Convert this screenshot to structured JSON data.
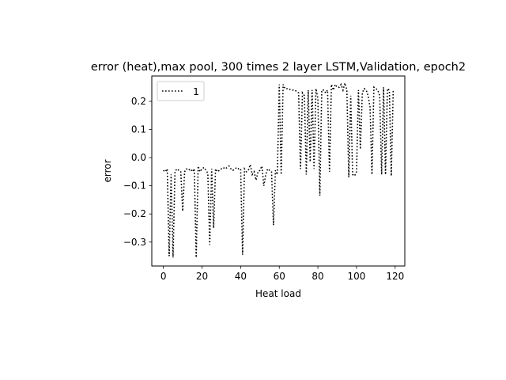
{
  "chart_data": {
    "type": "line",
    "title": "error (heat),max pool, 300 times 2 layer LSTM,Validation, epoch2",
    "xlabel": "Heat load",
    "ylabel": "error",
    "xlim": [
      -6,
      125
    ],
    "ylim": [
      -0.385,
      0.29
    ],
    "xticks": [
      0,
      20,
      40,
      60,
      80,
      100,
      120
    ],
    "yticks": [
      -0.3,
      -0.2,
      -0.1,
      0.0,
      0.1,
      0.2
    ],
    "ytick_labels": [
      "−0.3",
      "−0.2",
      "−0.1",
      "0.0",
      "0.1",
      "0.2"
    ],
    "grid": false,
    "legend_position": "top-left",
    "series": [
      {
        "name": "1",
        "color": "#000000",
        "line_style": "dotted",
        "x": [
          0,
          1,
          2,
          3,
          4,
          5,
          6,
          7,
          8,
          9,
          10,
          11,
          12,
          13,
          14,
          15,
          16,
          17,
          18,
          19,
          20,
          21,
          22,
          23,
          24,
          25,
          26,
          27,
          28,
          29,
          30,
          31,
          32,
          33,
          34,
          35,
          36,
          37,
          38,
          39,
          40,
          41,
          42,
          43,
          44,
          45,
          46,
          47,
          48,
          49,
          50,
          51,
          52,
          53,
          54,
          55,
          56,
          57,
          58,
          59,
          60,
          61,
          62,
          63,
          64,
          65,
          66,
          67,
          68,
          69,
          70,
          71,
          72,
          73,
          74,
          75,
          76,
          77,
          78,
          79,
          80,
          81,
          82,
          83,
          84,
          85,
          86,
          87,
          88,
          89,
          90,
          91,
          92,
          93,
          94,
          95,
          96,
          97,
          98,
          99,
          100,
          101,
          102,
          103,
          104,
          105,
          106,
          107,
          108,
          109,
          110,
          111,
          112,
          113,
          114,
          115,
          116,
          117,
          118,
          119
        ],
        "y": [
          -0.045,
          -0.05,
          -0.04,
          -0.35,
          -0.06,
          -0.355,
          -0.05,
          -0.04,
          -0.045,
          -0.05,
          -0.19,
          -0.05,
          -0.04,
          -0.045,
          -0.04,
          -0.05,
          -0.04,
          -0.355,
          -0.03,
          -0.05,
          -0.04,
          -0.035,
          -0.045,
          -0.055,
          -0.31,
          -0.04,
          -0.25,
          -0.04,
          -0.05,
          -0.045,
          -0.04,
          -0.035,
          -0.04,
          -0.035,
          -0.03,
          -0.04,
          -0.045,
          -0.04,
          -0.035,
          -0.04,
          -0.04,
          -0.345,
          -0.04,
          -0.05,
          -0.045,
          -0.025,
          -0.06,
          -0.05,
          -0.08,
          -0.05,
          -0.045,
          -0.03,
          -0.1,
          -0.06,
          -0.04,
          -0.045,
          -0.05,
          -0.24,
          -0.045,
          -0.06,
          0.26,
          -0.06,
          0.26,
          0.245,
          0.245,
          0.245,
          0.24,
          0.24,
          0.24,
          0.235,
          0.23,
          -0.04,
          0.23,
          0.22,
          -0.06,
          0.24,
          -0.015,
          0.24,
          -0.04,
          0.245,
          0.21,
          -0.135,
          0.24,
          0.24,
          0.23,
          0.24,
          -0.05,
          0.26,
          0.24,
          0.26,
          0.25,
          0.25,
          0.26,
          0.24,
          0.265,
          0.24,
          -0.07,
          0.22,
          -0.06,
          -0.065,
          -0.05,
          0.24,
          0.03,
          0.23,
          0.245,
          0.24,
          0.22,
          0.18,
          -0.06,
          0.25,
          0.245,
          0.24,
          0.22,
          -0.06,
          0.25,
          -0.06,
          0.245,
          0.24,
          -0.065,
          0.24
        ]
      }
    ]
  }
}
